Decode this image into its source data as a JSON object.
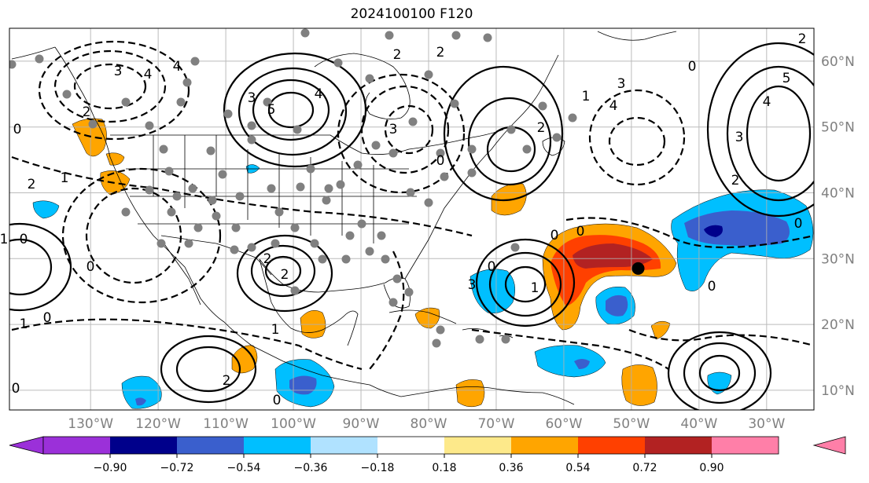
{
  "title": "2024100100 F120",
  "map": {
    "projection": "cylindrical (lat/lon)",
    "lon_range": [
      -142,
      -23
    ],
    "lat_range": [
      7,
      65
    ],
    "lon_ticks": [
      "130°W",
      "120°W",
      "110°W",
      "100°W",
      "90°W",
      "80°W",
      "70°W",
      "60°W",
      "50°W",
      "40°W",
      "30°W"
    ],
    "lat_ticks": [
      "10°N",
      "20°N",
      "30°N",
      "40°N",
      "50°N",
      "60°N"
    ],
    "gridlines": true
  },
  "colorbar": {
    "ticks": [
      "−0.90",
      "−0.72",
      "−0.54",
      "−0.36",
      "−0.18",
      "0.18",
      "0.36",
      "0.54",
      "0.72",
      "0.90"
    ],
    "colors": {
      "below": "#9b30d9",
      "bins": [
        "#9b30d9",
        "#00008b",
        "#3a5fcd",
        "#00bfff",
        "#b0e2ff",
        "#ffffff",
        "#fde98a",
        "#ffa500",
        "#ff4000",
        "#b22222",
        "#ff7fa8"
      ],
      "above": "#ff7fa8"
    },
    "extend": "both"
  },
  "contour_labels": [
    {
      "text": "3"
    },
    {
      "text": "4"
    },
    {
      "text": "4"
    },
    {
      "text": "2"
    },
    {
      "text": "5"
    },
    {
      "text": "3"
    },
    {
      "text": "4"
    },
    {
      "text": "3"
    },
    {
      "text": "2"
    },
    {
      "text": "2"
    },
    {
      "text": "1"
    },
    {
      "text": "3"
    },
    {
      "text": "4"
    },
    {
      "text": "2"
    },
    {
      "text": "2"
    },
    {
      "text": "5"
    },
    {
      "text": "3"
    },
    {
      "text": "4"
    },
    {
      "text": "2"
    },
    {
      "text": "0"
    },
    {
      "text": "0"
    },
    {
      "text": "2"
    },
    {
      "text": "1"
    },
    {
      "text": "0"
    },
    {
      "text": "0"
    },
    {
      "text": "0"
    },
    {
      "text": "1"
    },
    {
      "text": "0"
    },
    {
      "text": "1"
    },
    {
      "text": "0"
    },
    {
      "text": "0"
    },
    {
      "text": "2"
    },
    {
      "text": "2"
    },
    {
      "text": "1"
    },
    {
      "text": "0"
    },
    {
      "text": "0"
    },
    {
      "text": "0"
    },
    {
      "text": "1"
    },
    {
      "text": "2"
    },
    {
      "text": "3"
    },
    {
      "text": "0"
    },
    {
      "text": "0"
    }
  ],
  "marker": {
    "type": "storm-center",
    "lon": -49,
    "lat": 28.5,
    "color": "#000000"
  }
}
